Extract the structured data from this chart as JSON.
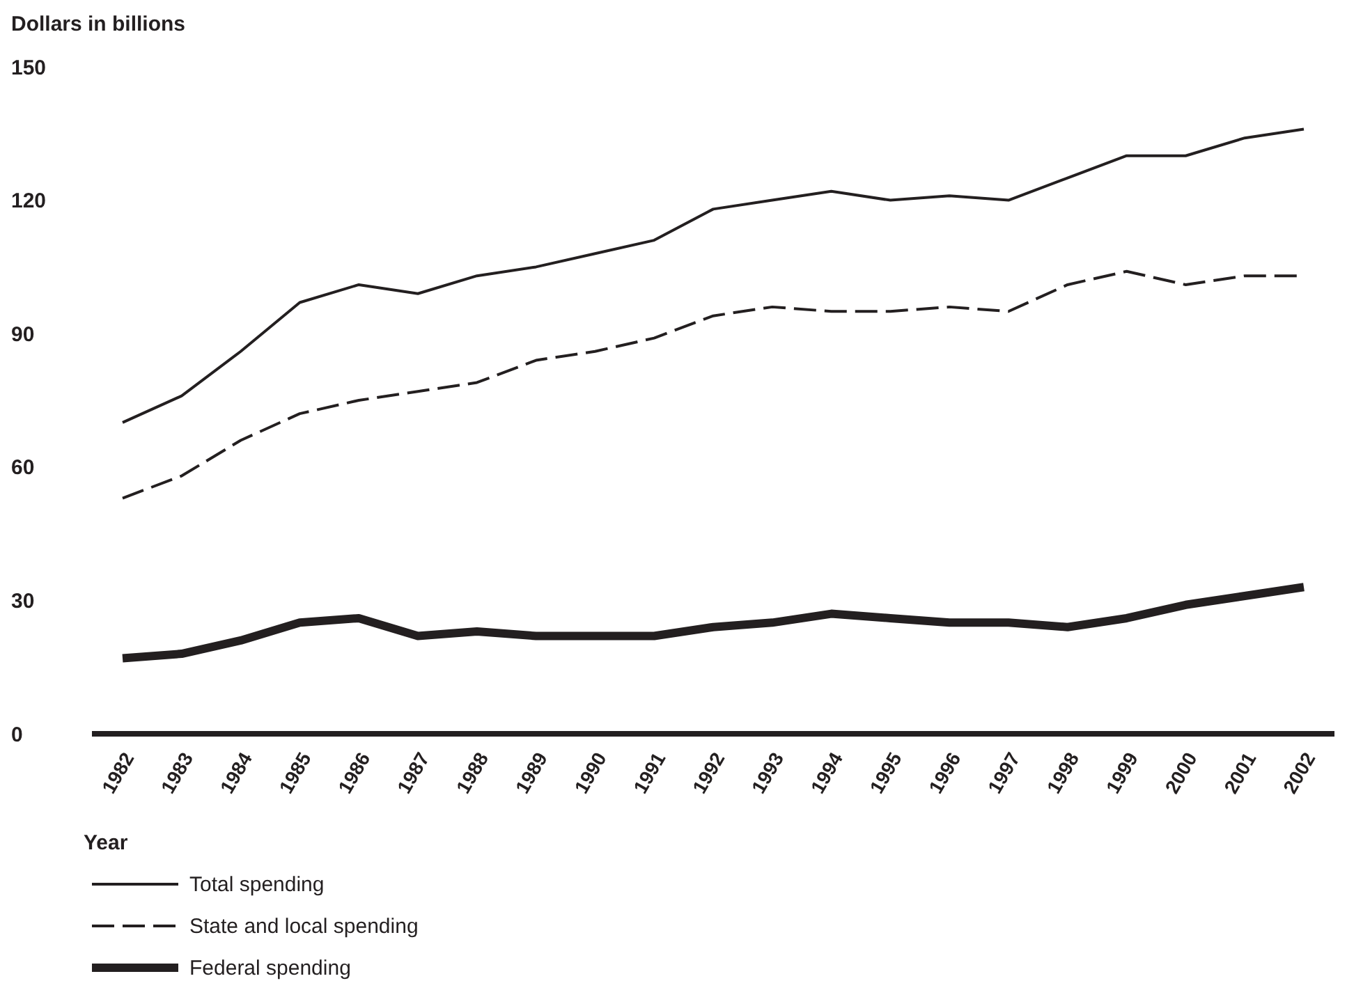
{
  "chart_data": {
    "type": "line",
    "ylabel": "Dollars in billions",
    "xlabel": "Year",
    "categories": [
      "1982",
      "1983",
      "1984",
      "1985",
      "1986",
      "1987",
      "1988",
      "1989",
      "1990",
      "1991",
      "1992",
      "1993",
      "1994",
      "1995",
      "1996",
      "1997",
      "1998",
      "1999",
      "2000",
      "2001",
      "2002"
    ],
    "series": [
      {
        "name": "Total spending",
        "color": "#231f20",
        "line_style": "solid",
        "values": [
          70,
          76,
          86,
          97,
          101,
          99,
          103,
          105,
          108,
          111,
          118,
          120,
          122,
          120,
          121,
          120,
          125,
          130,
          130,
          134,
          136
        ]
      },
      {
        "name": "State and local spending",
        "color": "#231f20",
        "line_style": "dashed",
        "values": [
          53,
          58,
          66,
          72,
          75,
          77,
          79,
          84,
          86,
          89,
          94,
          96,
          95,
          95,
          96,
          95,
          101,
          104,
          101,
          103,
          103
        ]
      },
      {
        "name": "Federal spending",
        "color": "#231f20",
        "line_style": "solid",
        "values": [
          17,
          18,
          21,
          25,
          26,
          22,
          23,
          22,
          22,
          22,
          24,
          25,
          27,
          26,
          25,
          25,
          24,
          26,
          29,
          31,
          33
        ]
      }
    ],
    "ylim": [
      0,
      150
    ],
    "yticks": [
      0,
      30,
      60,
      90,
      120,
      150
    ],
    "grid": false,
    "legend": "bottom",
    "marker": "none"
  }
}
